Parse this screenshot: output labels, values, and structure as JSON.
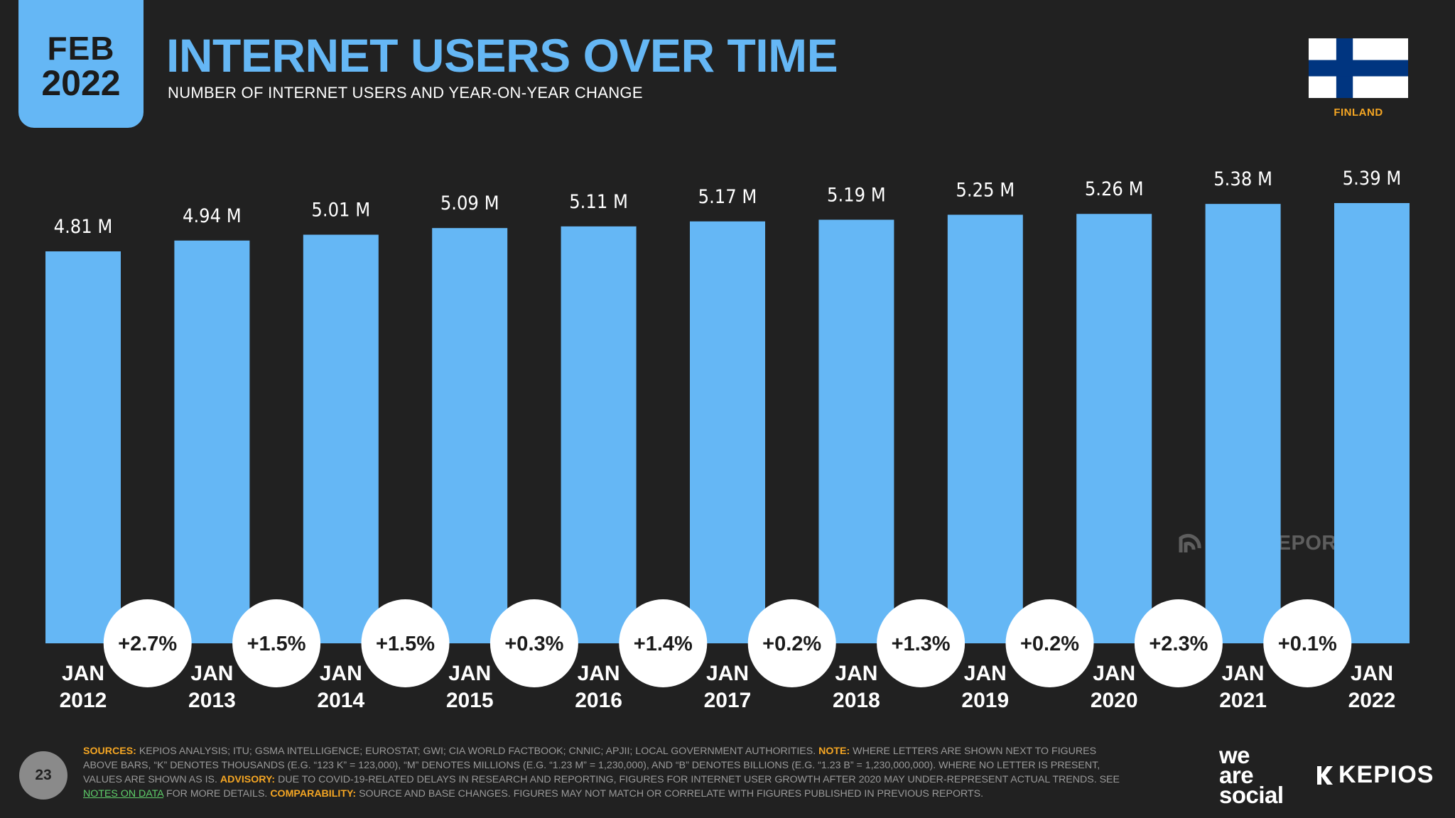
{
  "header": {
    "badge_month": "FEB",
    "badge_year": "2022",
    "title": "INTERNET USERS OVER TIME",
    "subtitle": "NUMBER OF INTERNET USERS AND YEAR-ON-YEAR CHANGE"
  },
  "country": {
    "name": "FINLAND",
    "flag_icon": "finland-flag-icon"
  },
  "watermark": "DATAREPORTAL",
  "chart_data": {
    "type": "bar",
    "title": "INTERNET USERS OVER TIME",
    "subtitle": "NUMBER OF INTERNET USERS AND YEAR-ON-YEAR CHANGE",
    "xlabel": "",
    "ylabel": "",
    "ylim": [
      0,
      5.6
    ],
    "categories": [
      [
        "JAN",
        "2012"
      ],
      [
        "JAN",
        "2013"
      ],
      [
        "JAN",
        "2014"
      ],
      [
        "JAN",
        "2015"
      ],
      [
        "JAN",
        "2016"
      ],
      [
        "JAN",
        "2017"
      ],
      [
        "JAN",
        "2018"
      ],
      [
        "JAN",
        "2019"
      ],
      [
        "JAN",
        "2020"
      ],
      [
        "JAN",
        "2021"
      ],
      [
        "JAN",
        "2022"
      ]
    ],
    "values": [
      4.81,
      4.94,
      5.01,
      5.09,
      5.11,
      5.17,
      5.19,
      5.25,
      5.26,
      5.38,
      5.39
    ],
    "value_labels": [
      "4.81 M",
      "4.94 M",
      "5.01 M",
      "5.09 M",
      "5.11 M",
      "5.17 M",
      "5.19 M",
      "5.25 M",
      "5.26 M",
      "5.38 M",
      "5.39 M"
    ],
    "unit": "M",
    "yoy_change": [
      "+2.7%",
      "+1.5%",
      "+1.5%",
      "+0.3%",
      "+1.4%",
      "+0.2%",
      "+1.3%",
      "+0.2%",
      "+2.3%",
      "+0.1%"
    ],
    "grid": false,
    "colors": {
      "bar": "#65b7f5",
      "circle": "#ffffff",
      "background": "#212121"
    }
  },
  "footnote": {
    "sources_label": "SOURCES:",
    "sources_text": " KEPIOS ANALYSIS; ITU; GSMA INTELLIGENCE; EUROSTAT; GWI; CIA WORLD FACTBOOK; CNNIC; APJII; LOCAL GOVERNMENT AUTHORITIES. ",
    "note_label": "NOTE:",
    "note_text": " WHERE LETTERS ARE SHOWN NEXT TO FIGURES ABOVE BARS, “K” DENOTES THOUSANDS (E.G. “123 K” = 123,000), “M” DENOTES MILLIONS (E.G. “1.23 M” = 1,230,000), AND “B” DENOTES BILLIONS (E.G. “1.23 B” = 1,230,000,000). WHERE NO LETTER IS PRESENT, VALUES ARE SHOWN AS IS. ",
    "advisory_label": "ADVISORY:",
    "advisory_text": " DUE TO COVID-19-RELATED DELAYS IN RESEARCH AND REPORTING, FIGURES FOR INTERNET USER GROWTH AFTER 2020 MAY UNDER-REPRESENT ACTUAL TRENDS. SEE ",
    "notes_link": "NOTES ON DATA",
    "after_link_text": " FOR MORE DETAILS. ",
    "comparability_label": "COMPARABILITY:",
    "comparability_text": " SOURCE AND BASE CHANGES. FIGURES MAY NOT MATCH OR CORRELATE WITH FIGURES PUBLISHED IN PREVIOUS REPORTS."
  },
  "footer": {
    "page_number": "23",
    "brand_we": "we",
    "brand_are": "are",
    "brand_social": "social",
    "brand_kepios": "KEPIOS"
  }
}
